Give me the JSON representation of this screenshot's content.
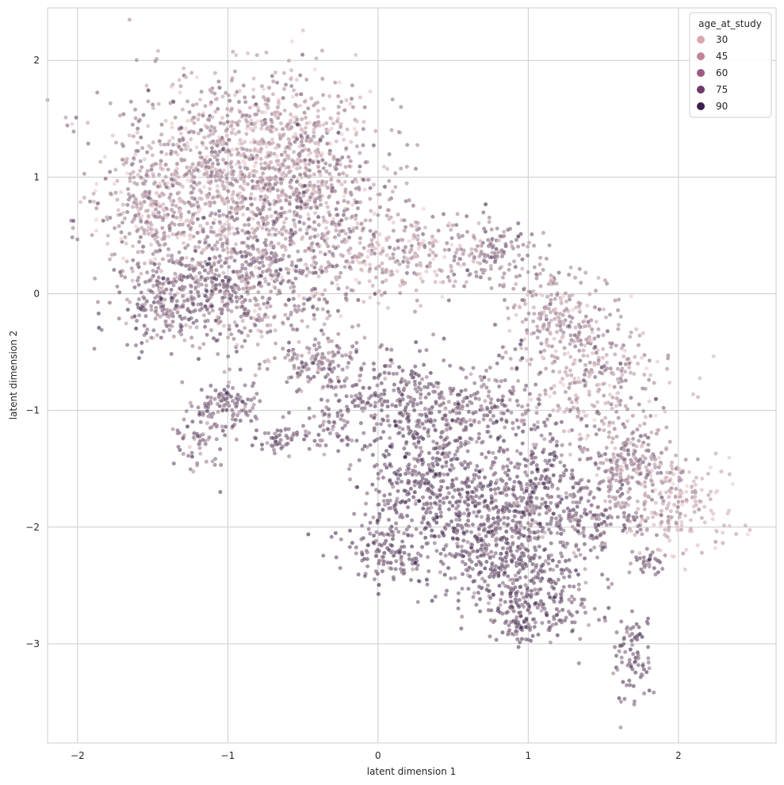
{
  "chart_data": {
    "type": "scatter",
    "title": "",
    "xlabel": "latent dimension 1",
    "ylabel": "latent dimension 2",
    "xlim": [
      -2.2,
      2.65
    ],
    "ylim": [
      -3.85,
      2.45
    ],
    "xticks": [
      -2,
      -1,
      0,
      1,
      2
    ],
    "xtick_labels": [
      "−2",
      "−1",
      "0",
      "1",
      "2"
    ],
    "yticks": [
      -3,
      -2,
      -1,
      0,
      1,
      2
    ],
    "ytick_labels": [
      "−3",
      "−2",
      "−1",
      "0",
      "1",
      "2"
    ],
    "grid": true,
    "legend": {
      "title": "age_at_study",
      "placement": "top-right",
      "entries": [
        {
          "label": "30",
          "color": "#dba8ae"
        },
        {
          "label": "45",
          "color": "#c28495"
        },
        {
          "label": "60",
          "color": "#9c5b85"
        },
        {
          "label": "75",
          "color": "#6d3a69"
        },
        {
          "label": "90",
          "color": "#3e1f4a"
        }
      ]
    },
    "hue_scale": {
      "min_age": 20,
      "max_age": 95,
      "min_color": "#efc9c9",
      "max_color": "#2d1640"
    },
    "clusters": [
      {
        "cx": -1.05,
        "cy": 1.0,
        "sx": 0.4,
        "sy": 0.45,
        "n": 900,
        "age_mean": 48,
        "age_sd": 15
      },
      {
        "cx": -0.6,
        "cy": 1.3,
        "sx": 0.3,
        "sy": 0.3,
        "n": 400,
        "age_mean": 42,
        "age_sd": 12
      },
      {
        "cx": -0.95,
        "cy": 0.05,
        "sx": 0.35,
        "sy": 0.3,
        "n": 600,
        "age_mean": 62,
        "age_sd": 15
      },
      {
        "cx": -1.45,
        "cy": -0.1,
        "sx": 0.12,
        "sy": 0.15,
        "n": 120,
        "age_mean": 65,
        "age_sd": 12
      },
      {
        "cx": -1.5,
        "cy": 0.7,
        "sx": 0.15,
        "sy": 0.25,
        "n": 200,
        "age_mean": 45,
        "age_sd": 13
      },
      {
        "cx": -0.35,
        "cy": 0.6,
        "sx": 0.3,
        "sy": 0.35,
        "n": 400,
        "age_mean": 50,
        "age_sd": 15
      },
      {
        "cx": 0.15,
        "cy": 0.35,
        "sx": 0.25,
        "sy": 0.2,
        "n": 200,
        "age_mean": 42,
        "age_sd": 14
      },
      {
        "cx": -1.0,
        "cy": -0.95,
        "sx": 0.12,
        "sy": 0.12,
        "n": 110,
        "age_mean": 70,
        "age_sd": 10
      },
      {
        "cx": -0.4,
        "cy": -0.6,
        "sx": 0.12,
        "sy": 0.12,
        "n": 120,
        "age_mean": 60,
        "age_sd": 12
      },
      {
        "cx": -0.65,
        "cy": -1.25,
        "sx": 0.08,
        "sy": 0.07,
        "n": 50,
        "age_mean": 72,
        "age_sd": 9
      },
      {
        "cx": 0.1,
        "cy": -0.9,
        "sx": 0.2,
        "sy": 0.2,
        "n": 220,
        "age_mean": 72,
        "age_sd": 10
      },
      {
        "cx": 0.3,
        "cy": -1.6,
        "sx": 0.2,
        "sy": 0.25,
        "n": 320,
        "age_mean": 74,
        "age_sd": 10
      },
      {
        "cx": 0.05,
        "cy": -2.2,
        "sx": 0.15,
        "sy": 0.15,
        "n": 130,
        "age_mean": 74,
        "age_sd": 10
      },
      {
        "cx": 0.6,
        "cy": -1.0,
        "sx": 0.22,
        "sy": 0.2,
        "n": 220,
        "age_mean": 66,
        "age_sd": 12
      },
      {
        "cx": 0.75,
        "cy": -2.1,
        "sx": 0.22,
        "sy": 0.3,
        "n": 480,
        "age_mean": 73,
        "age_sd": 11
      },
      {
        "cx": 1.0,
        "cy": -1.6,
        "sx": 0.2,
        "sy": 0.25,
        "n": 260,
        "age_mean": 74,
        "age_sd": 10
      },
      {
        "cx": 1.1,
        "cy": -2.6,
        "sx": 0.2,
        "sy": 0.2,
        "n": 220,
        "age_mean": 72,
        "age_sd": 11
      },
      {
        "cx": 0.95,
        "cy": -2.85,
        "sx": 0.05,
        "sy": 0.08,
        "n": 40,
        "age_mean": 75,
        "age_sd": 8
      },
      {
        "cx": 1.7,
        "cy": -3.1,
        "sx": 0.07,
        "sy": 0.2,
        "n": 80,
        "age_mean": 72,
        "age_sd": 10
      },
      {
        "cx": 1.4,
        "cy": -1.9,
        "sx": 0.2,
        "sy": 0.2,
        "n": 220,
        "age_mean": 67,
        "age_sd": 12
      },
      {
        "cx": 0.75,
        "cy": 0.35,
        "sx": 0.15,
        "sy": 0.15,
        "n": 130,
        "age_mean": 58,
        "age_sd": 13
      },
      {
        "cx": 1.2,
        "cy": -0.2,
        "sx": 0.2,
        "sy": 0.2,
        "n": 220,
        "age_mean": 48,
        "age_sd": 14
      },
      {
        "cx": 1.45,
        "cy": -0.75,
        "sx": 0.25,
        "sy": 0.25,
        "n": 280,
        "age_mean": 46,
        "age_sd": 14
      },
      {
        "cx": 1.7,
        "cy": -1.45,
        "sx": 0.15,
        "sy": 0.15,
        "n": 200,
        "age_mean": 52,
        "age_sd": 13
      },
      {
        "cx": 2.0,
        "cy": -1.8,
        "sx": 0.18,
        "sy": 0.18,
        "n": 180,
        "age_mean": 36,
        "age_sd": 10
      },
      {
        "cx": 1.8,
        "cy": -2.3,
        "sx": 0.05,
        "sy": 0.05,
        "n": 30,
        "age_mean": 72,
        "age_sd": 9
      },
      {
        "cx": -1.2,
        "cy": -1.25,
        "sx": 0.1,
        "sy": 0.15,
        "n": 60,
        "age_mean": 62,
        "age_sd": 12
      },
      {
        "cx": -0.3,
        "cy": -1.1,
        "sx": 0.1,
        "sy": 0.1,
        "n": 60,
        "age_mean": 65,
        "age_sd": 12
      }
    ]
  }
}
